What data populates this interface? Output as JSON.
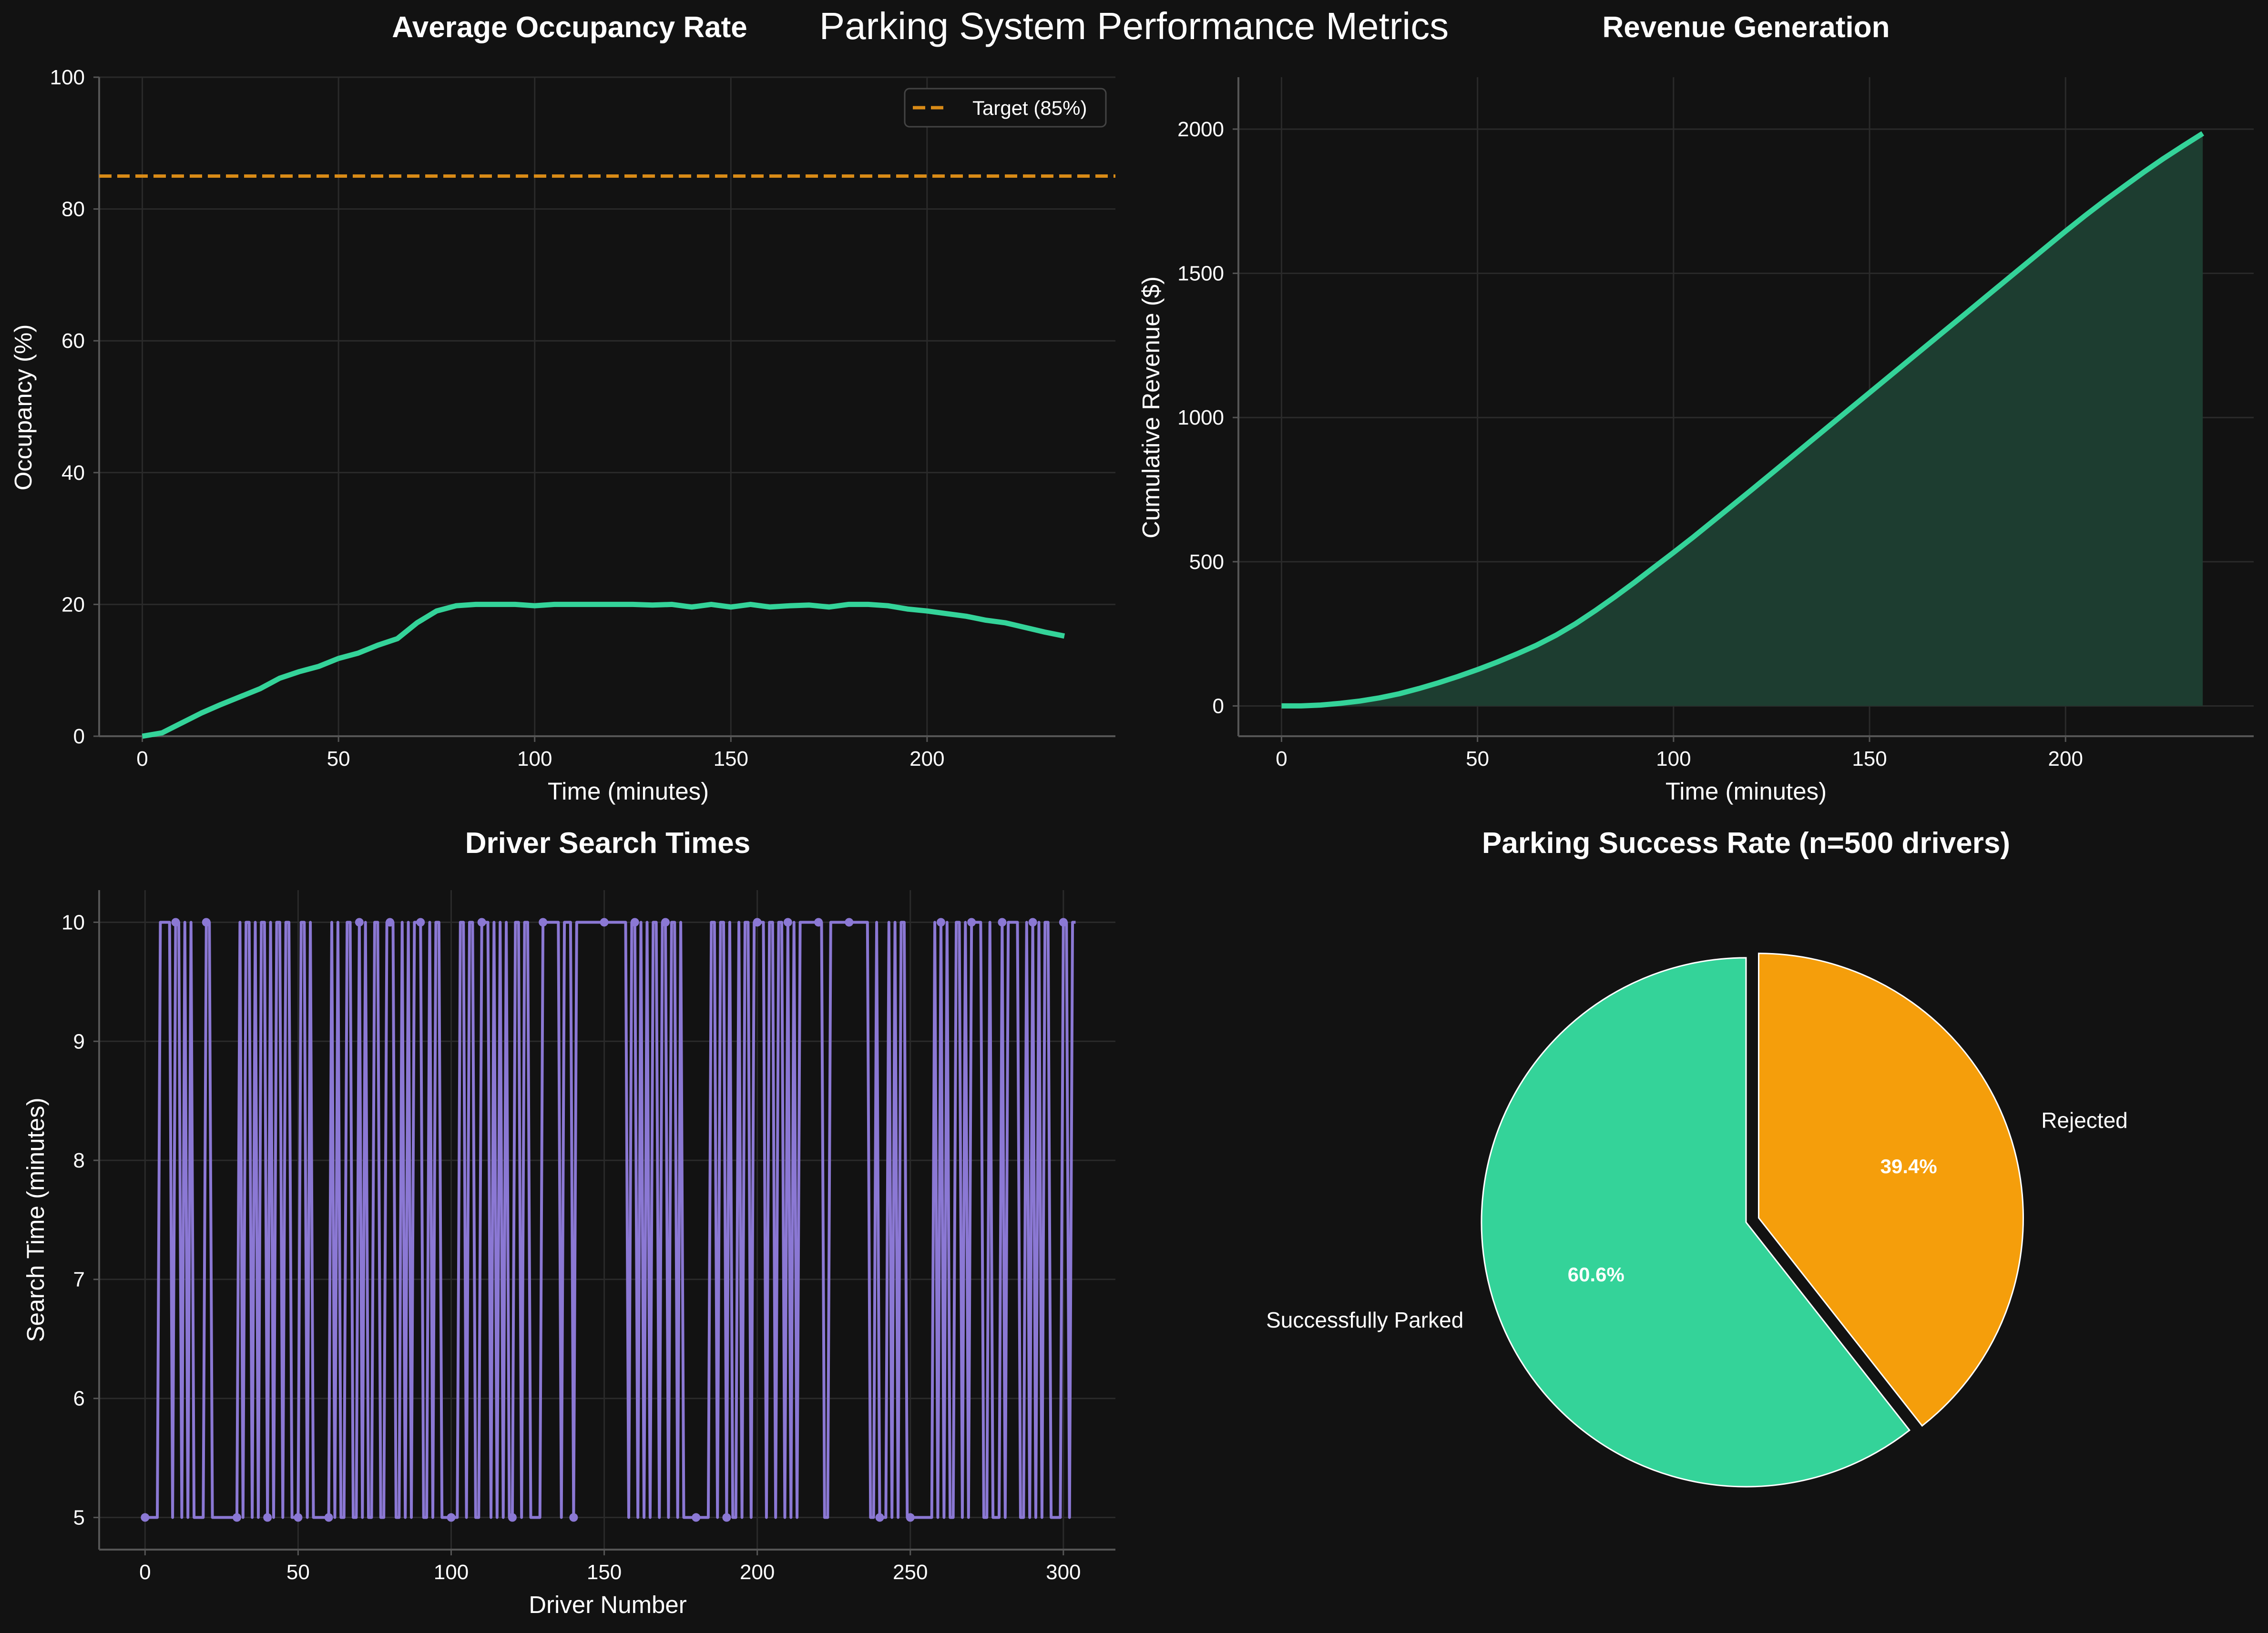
{
  "suptitle": "Parking System Performance Metrics",
  "colors": {
    "background": "#121212",
    "grid": "#2a2a2a",
    "spine": "#555555",
    "green": "#34d399",
    "orange": "#f59e0b",
    "purple": "#8b78d4",
    "revenue_fill": "#1d3d30",
    "target": "#d98b17"
  },
  "chart_data": [
    {
      "type": "line",
      "title": "Average Occupancy Rate",
      "xlabel": "Time (minutes)",
      "ylabel": "Occupancy (%)",
      "xlim": [
        -11,
        248
      ],
      "ylim": [
        0,
        100
      ],
      "xticks": [
        0,
        50,
        100,
        150,
        200
      ],
      "yticks": [
        0,
        20,
        40,
        60,
        80,
        100
      ],
      "grid": true,
      "legend_position": "top-right",
      "series": [
        {
          "x": [
            0,
            5,
            10,
            15,
            20,
            25,
            30,
            35,
            40,
            45,
            50,
            55,
            60,
            65,
            70,
            75,
            80,
            85,
            90,
            95,
            100,
            105,
            110,
            115,
            120,
            125,
            130,
            135,
            140,
            145,
            150,
            155,
            160,
            165,
            170,
            175,
            180,
            185,
            190,
            195,
            200,
            205,
            210,
            215,
            220,
            225,
            230,
            235
          ],
          "values": [
            0,
            0.5,
            2,
            3.5,
            4.8,
            6,
            7.2,
            8.8,
            9.8,
            10.6,
            11.8,
            12.6,
            13.8,
            14.8,
            17.2,
            19,
            19.8,
            20,
            20,
            20,
            19.8,
            20,
            20,
            20,
            20,
            20,
            19.9,
            20,
            19.6,
            20,
            19.6,
            20,
            19.6,
            19.8,
            19.9,
            19.6,
            20,
            20,
            19.8,
            19.3,
            19,
            18.6,
            18.2,
            17.6,
            17.2,
            16.5,
            15.8,
            15.2
          ]
        },
        {
          "name": "Target (85%)",
          "style": "dashed",
          "constant": 85
        }
      ]
    },
    {
      "type": "area",
      "title": "Revenue Generation",
      "xlabel": "Time (minutes)",
      "ylabel": "Cumulative Revenue ($)",
      "xlim": [
        -11,
        248
      ],
      "ylim": [
        -105,
        2180
      ],
      "xticks": [
        0,
        50,
        100,
        150,
        200
      ],
      "yticks": [
        0,
        500,
        1000,
        1500,
        2000
      ],
      "grid": true,
      "series": [
        {
          "x": [
            0,
            5,
            10,
            15,
            20,
            25,
            30,
            35,
            40,
            45,
            50,
            55,
            60,
            65,
            70,
            75,
            80,
            85,
            90,
            95,
            100,
            105,
            110,
            115,
            120,
            125,
            130,
            135,
            140,
            145,
            150,
            155,
            160,
            165,
            170,
            175,
            180,
            185,
            190,
            195,
            200,
            205,
            210,
            215,
            220,
            225,
            230,
            235
          ],
          "values": [
            0,
            0,
            3,
            9,
            17,
            28,
            42,
            60,
            80,
            102,
            126,
            152,
            180,
            210,
            245,
            285,
            330,
            378,
            428,
            480,
            532,
            585,
            640,
            695,
            750,
            806,
            862,
            918,
            974,
            1030,
            1086,
            1142,
            1198,
            1254,
            1310,
            1366,
            1422,
            1478,
            1534,
            1590,
            1646,
            1700,
            1752,
            1802,
            1851,
            1898,
            1942,
            1985
          ]
        }
      ]
    },
    {
      "type": "line",
      "title": "Driver Search Times",
      "xlabel": "Driver Number",
      "ylabel": "Search Time (minutes)",
      "xlim": [
        -15,
        317
      ],
      "ylim": [
        4.73,
        10.27
      ],
      "xticks": [
        0,
        50,
        100,
        150,
        200,
        250,
        300
      ],
      "yticks": [
        5,
        6,
        7,
        8,
        9,
        10
      ],
      "grid": true,
      "series": [
        {
          "values": [
            5,
            5,
            5,
            5,
            5,
            10,
            10,
            10,
            10,
            5,
            10,
            10,
            5,
            10,
            5,
            10,
            5,
            5,
            5,
            5,
            10,
            10,
            5,
            5,
            5,
            5,
            5,
            5,
            5,
            5,
            5,
            10,
            5,
            10,
            10,
            5,
            10,
            5,
            10,
            10,
            5,
            10,
            5,
            10,
            10,
            5,
            10,
            10,
            5,
            5,
            5,
            10,
            10,
            5,
            10,
            5,
            5,
            5,
            5,
            5,
            5,
            10,
            5,
            10,
            5,
            5,
            10,
            10,
            5,
            5,
            10,
            5,
            10,
            5,
            5,
            10,
            10,
            5,
            5,
            10,
            10,
            10,
            5,
            5,
            10,
            5,
            10,
            5,
            10,
            10,
            10,
            5,
            5,
            10,
            5,
            10,
            10,
            5,
            5,
            5,
            5,
            5,
            5,
            10,
            10,
            5,
            10,
            10,
            5,
            5,
            10,
            10,
            10,
            5,
            10,
            5,
            10,
            5,
            10,
            5,
            5,
            10,
            10,
            5,
            10,
            10,
            5,
            5,
            5,
            5,
            10,
            10,
            10,
            10,
            10,
            10,
            5,
            10,
            10,
            10,
            5,
            10,
            10,
            10,
            10,
            10,
            10,
            10,
            10,
            10,
            10,
            10,
            10,
            10,
            10,
            10,
            10,
            10,
            5,
            10,
            10,
            5,
            10,
            5,
            10,
            5,
            10,
            10,
            5,
            10,
            10,
            5,
            10,
            10,
            5,
            10,
            5,
            5,
            5,
            5,
            5,
            5,
            5,
            5,
            5,
            10,
            10,
            5,
            10,
            10,
            5,
            10,
            5,
            5,
            10,
            5,
            10,
            10,
            5,
            10,
            10,
            10,
            10,
            5,
            10,
            10,
            5,
            10,
            10,
            5,
            10,
            5,
            10,
            5,
            10,
            10,
            10,
            10,
            10,
            10,
            10,
            10,
            5,
            5,
            10,
            10,
            10,
            10,
            10,
            10,
            10,
            10,
            10,
            10,
            10,
            10,
            10,
            5,
            5,
            10,
            5,
            5,
            5,
            10,
            5,
            10,
            5,
            10,
            10,
            5,
            5,
            5,
            5,
            5,
            5,
            5,
            5,
            5,
            10,
            5,
            10,
            5,
            10,
            5,
            5,
            10,
            10,
            5,
            10,
            5,
            10,
            10,
            10,
            10,
            5,
            5,
            10,
            5,
            5,
            5,
            10,
            5,
            10,
            10,
            10,
            10,
            5,
            5,
            10,
            5,
            10,
            5,
            10,
            5,
            10,
            10,
            5,
            5,
            5,
            5,
            10,
            10,
            5,
            10,
            10
          ]
        }
      ]
    },
    {
      "type": "pie",
      "title": "Parking Success Rate (n=500 drivers)",
      "slices": [
        {
          "label": "Successfully Parked",
          "value": 60.6,
          "pct_text": "60.6%"
        },
        {
          "label": "Rejected",
          "value": 39.4,
          "pct_text": "39.4%",
          "explode": true
        }
      ]
    }
  ]
}
